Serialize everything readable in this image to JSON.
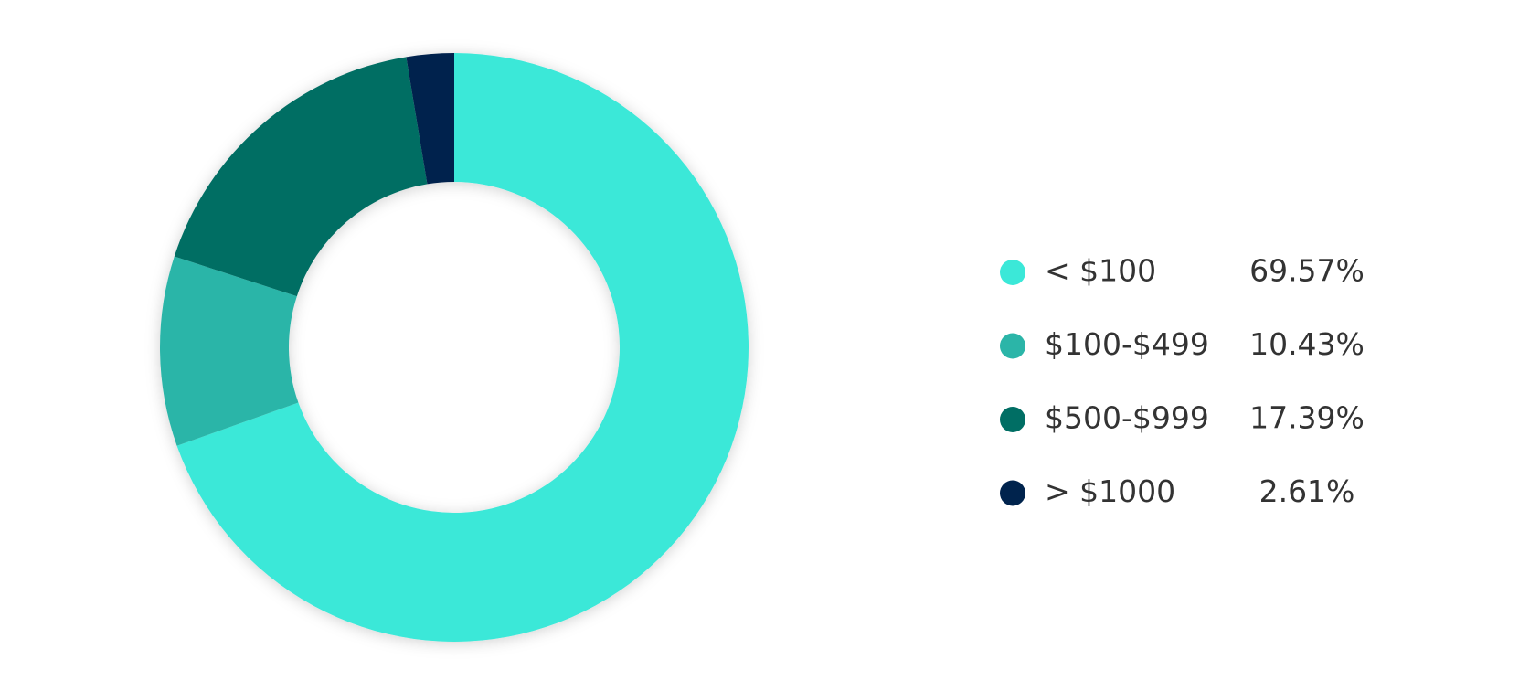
{
  "chart_data": {
    "type": "pie",
    "categories": [
      "< $100",
      "$100-$499",
      "$500-$999",
      "> $1000"
    ],
    "values": [
      69.57,
      10.43,
      17.39,
      2.61
    ],
    "value_labels": [
      "69.57%",
      "10.43%",
      "17.39%",
      "2.61%"
    ],
    "colors": [
      "#3be8d8",
      "#2bb5a8",
      "#006e64",
      "#00234d"
    ]
  }
}
